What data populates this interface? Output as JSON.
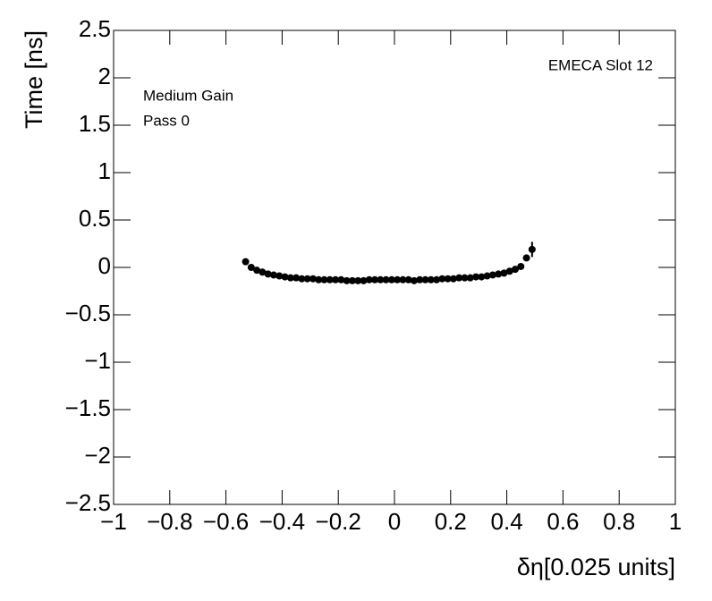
{
  "chart_data": {
    "type": "scatter",
    "xlabel": "δη[0.025 units]",
    "ylabel": "Time [ns]",
    "annotations": [
      "EMECA Slot 12",
      "Medium Gain",
      "Pass 0"
    ],
    "color": "#000000",
    "x": [
      -0.53,
      -0.51,
      -0.49,
      -0.47,
      -0.45,
      -0.43,
      -0.41,
      -0.39,
      -0.37,
      -0.35,
      -0.33,
      -0.31,
      -0.29,
      -0.27,
      -0.25,
      -0.23,
      -0.21,
      -0.19,
      -0.17,
      -0.15,
      -0.13,
      -0.11,
      -0.09,
      -0.07,
      -0.05,
      -0.03,
      -0.01,
      0.01,
      0.03,
      0.05,
      0.07,
      0.09,
      0.11,
      0.13,
      0.15,
      0.17,
      0.19,
      0.21,
      0.23,
      0.25,
      0.27,
      0.29,
      0.31,
      0.33,
      0.35,
      0.37,
      0.39,
      0.41,
      0.43,
      0.45,
      0.47,
      0.49
    ],
    "values": [
      0.06,
      0,
      -0.03,
      -0.05,
      -0.07,
      -0.08,
      -0.09,
      -0.1,
      -0.11,
      -0.11,
      -0.12,
      -0.12,
      -0.12,
      -0.13,
      -0.13,
      -0.13,
      -0.13,
      -0.13,
      -0.14,
      -0.14,
      -0.14,
      -0.14,
      -0.13,
      -0.13,
      -0.13,
      -0.13,
      -0.13,
      -0.13,
      -0.13,
      -0.13,
      -0.14,
      -0.13,
      -0.13,
      -0.13,
      -0.13,
      -0.12,
      -0.12,
      -0.12,
      -0.11,
      -0.11,
      -0.11,
      -0.1,
      -0.1,
      -0.09,
      -0.08,
      -0.07,
      -0.06,
      -0.04,
      -0.02,
      0.01,
      0.1,
      0.19
    ],
    "errors": [
      0.01,
      0.01,
      0.01,
      0.01,
      0.01,
      0.01,
      0.01,
      0.01,
      0.01,
      0.01,
      0.01,
      0.01,
      0.01,
      0.01,
      0.01,
      0.01,
      0.01,
      0.01,
      0.01,
      0.01,
      0.01,
      0.01,
      0.01,
      0.01,
      0.01,
      0.01,
      0.01,
      0.01,
      0.01,
      0.01,
      0.01,
      0.01,
      0.01,
      0.01,
      0.01,
      0.01,
      0.01,
      0.01,
      0.01,
      0.01,
      0.01,
      0.01,
      0.01,
      0.01,
      0.01,
      0.01,
      0.01,
      0.01,
      0.01,
      0.01,
      0.02,
      0.08
    ],
    "xlim": [
      -1,
      1
    ],
    "xticks": [
      {
        "value": -1,
        "label": "−1"
      },
      {
        "value": -0.8,
        "label": "−0.8"
      },
      {
        "value": -0.6,
        "label": "−0.6"
      },
      {
        "value": -0.4,
        "label": "−0.4"
      },
      {
        "value": -0.2,
        "label": "−0.2"
      },
      0,
      0.2,
      0.4,
      0.6,
      0.8,
      1
    ],
    "ylim": [
      -2.5,
      2.5
    ],
    "yticks": [
      {
        "value": -2.5,
        "label": "−2.5"
      },
      {
        "value": -2,
        "label": "−2"
      },
      {
        "value": -1.5,
        "label": "−1.5"
      },
      {
        "value": -1,
        "label": "−1"
      },
      {
        "value": -0.5,
        "label": "−0.5"
      },
      0,
      0.5,
      1,
      1.5,
      2,
      2.5
    ]
  }
}
